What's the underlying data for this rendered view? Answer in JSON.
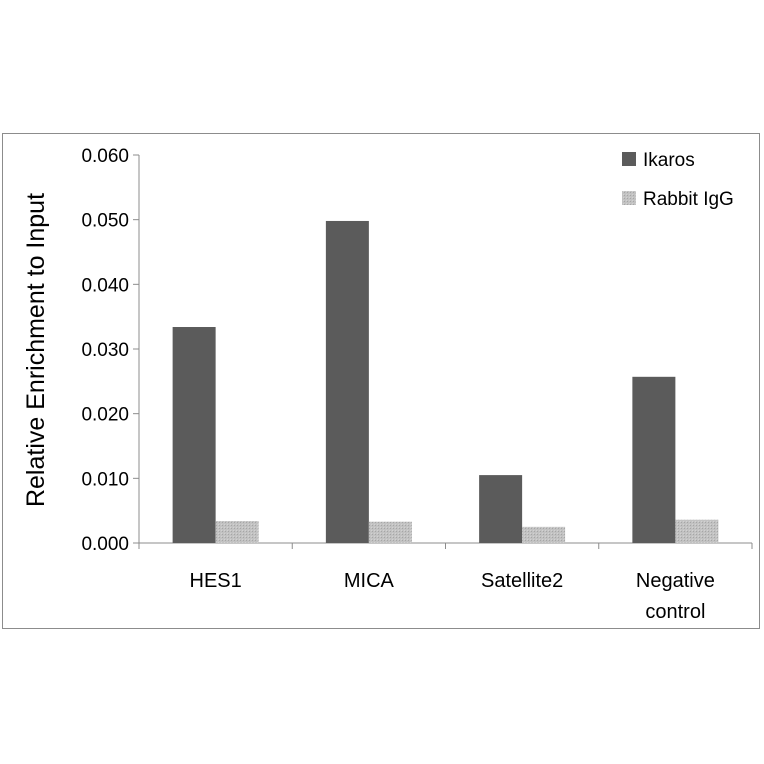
{
  "chart_data": {
    "type": "bar",
    "title": "",
    "xlabel": "",
    "ylabel": "Relative Enrichment to Input",
    "ylim": [
      0,
      0.06
    ],
    "yticks": [
      "0.000",
      "0.010",
      "0.020",
      "0.030",
      "0.040",
      "0.050",
      "0.060"
    ],
    "ytick_values": [
      0,
      0.01,
      0.02,
      0.03,
      0.04,
      0.05,
      0.06
    ],
    "grid": false,
    "legend_position": "top-right",
    "categories": [
      [
        "HES1"
      ],
      [
        "MICA"
      ],
      [
        "Satellite2"
      ],
      [
        "Negative",
        "control"
      ]
    ],
    "series": [
      {
        "name": "Ikaros",
        "color": "#5b5b5b",
        "values": [
          0.0334,
          0.0498,
          0.0105,
          0.0257
        ]
      },
      {
        "name": "Rabbit IgG",
        "color": "#bdbdbd",
        "values": [
          0.0034,
          0.0033,
          0.0025,
          0.0036
        ]
      }
    ]
  }
}
